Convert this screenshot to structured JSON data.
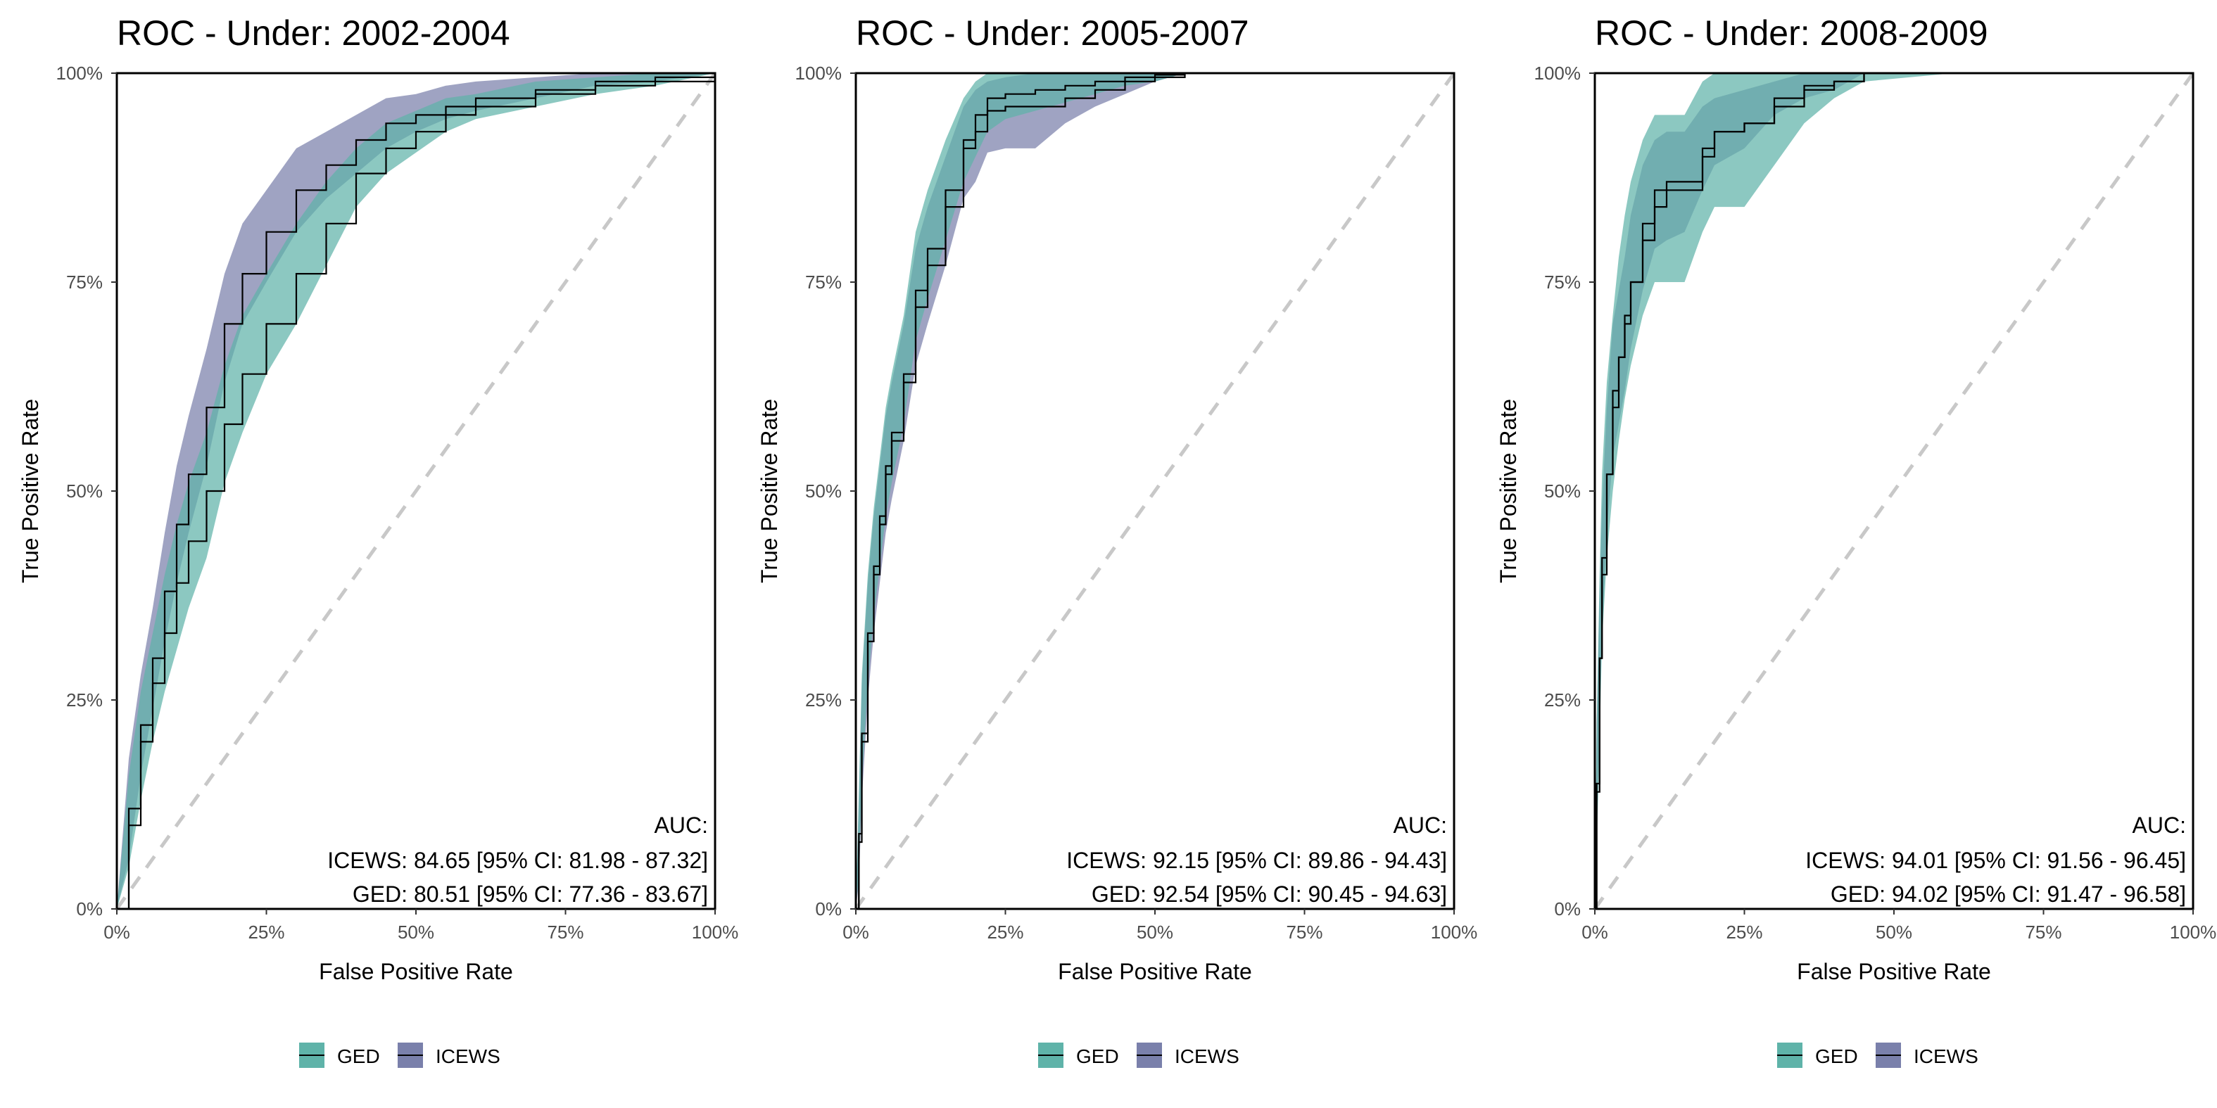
{
  "colors": {
    "GED_band": "#5fb3a9",
    "ICEWS_band": "#7a80ab",
    "overlap_band": "#5b7fa0",
    "line": "#000000",
    "diagonal": "#c8c8c8",
    "tick_text": "#4d4d4d"
  },
  "legend": {
    "items": [
      {
        "label": "GED",
        "color": "#5fb3a9"
      },
      {
        "label": "ICEWS",
        "color": "#7a80ab"
      }
    ]
  },
  "chart_data": [
    {
      "type": "line",
      "title": "ROC - Under: 2002-2004",
      "xlabel": "False Positive Rate",
      "ylabel": "True Positive Rate",
      "xlim": [
        0,
        1
      ],
      "ylim": [
        0,
        1
      ],
      "x_ticks": [
        "0%",
        "25%",
        "50%",
        "75%",
        "100%"
      ],
      "y_ticks": [
        "0%",
        "25%",
        "50%",
        "75%",
        "100%"
      ],
      "auc_heading": "AUC:",
      "auc_lines": [
        "ICEWS: 84.65 [95% CI: 81.98 - 87.32]",
        "GED: 80.51 [95% CI: 77.36 - 83.67]"
      ],
      "series": [
        {
          "name": "ICEWS",
          "x": [
            0,
            0.02,
            0.04,
            0.06,
            0.08,
            0.1,
            0.12,
            0.15,
            0.18,
            0.21,
            0.25,
            0.3,
            0.35,
            0.4,
            0.45,
            0.5,
            0.55,
            0.6,
            0.7,
            0.8,
            0.9,
            1.0
          ],
          "y": [
            0,
            0.12,
            0.22,
            0.3,
            0.38,
            0.46,
            0.52,
            0.6,
            0.7,
            0.76,
            0.81,
            0.86,
            0.89,
            0.92,
            0.94,
            0.95,
            0.96,
            0.97,
            0.98,
            0.99,
            0.995,
            1.0
          ],
          "lower": [
            0,
            0.06,
            0.16,
            0.24,
            0.32,
            0.39,
            0.45,
            0.53,
            0.63,
            0.7,
            0.75,
            0.81,
            0.85,
            0.88,
            0.91,
            0.93,
            0.945,
            0.955,
            0.97,
            0.985,
            0.99,
            1.0
          ],
          "upper": [
            0,
            0.18,
            0.28,
            0.36,
            0.45,
            0.53,
            0.59,
            0.67,
            0.76,
            0.82,
            0.86,
            0.91,
            0.93,
            0.95,
            0.97,
            0.975,
            0.985,
            0.99,
            0.995,
            1.0,
            1.0,
            1.0
          ]
        },
        {
          "name": "GED",
          "x": [
            0,
            0.02,
            0.04,
            0.06,
            0.08,
            0.1,
            0.12,
            0.15,
            0.18,
            0.21,
            0.25,
            0.3,
            0.35,
            0.4,
            0.45,
            0.5,
            0.55,
            0.6,
            0.7,
            0.8,
            0.9,
            1.0
          ],
          "y": [
            0,
            0.1,
            0.2,
            0.27,
            0.33,
            0.39,
            0.44,
            0.5,
            0.58,
            0.64,
            0.7,
            0.76,
            0.82,
            0.88,
            0.91,
            0.93,
            0.95,
            0.96,
            0.975,
            0.985,
            0.99,
            1.0
          ],
          "lower": [
            0,
            0.05,
            0.13,
            0.2,
            0.26,
            0.31,
            0.36,
            0.42,
            0.51,
            0.57,
            0.64,
            0.7,
            0.77,
            0.84,
            0.88,
            0.905,
            0.93,
            0.945,
            0.96,
            0.975,
            0.985,
            1.0
          ],
          "upper": [
            0,
            0.16,
            0.26,
            0.33,
            0.4,
            0.46,
            0.51,
            0.57,
            0.65,
            0.71,
            0.76,
            0.82,
            0.87,
            0.91,
            0.94,
            0.955,
            0.97,
            0.975,
            0.99,
            0.995,
            1.0,
            1.0
          ]
        }
      ]
    },
    {
      "type": "line",
      "title": "ROC - Under: 2005-2007",
      "xlabel": "False Positive Rate",
      "ylabel": "True Positive Rate",
      "xlim": [
        0,
        1
      ],
      "ylim": [
        0,
        1
      ],
      "x_ticks": [
        "0%",
        "25%",
        "50%",
        "75%",
        "100%"
      ],
      "y_ticks": [
        "0%",
        "25%",
        "50%",
        "75%",
        "100%"
      ],
      "auc_heading": "AUC:",
      "auc_lines": [
        "ICEWS: 92.15 [95% CI: 89.86 - 94.43]",
        "GED: 92.54 [95% CI: 90.45 - 94.63]"
      ],
      "series": [
        {
          "name": "ICEWS",
          "x": [
            0,
            0.005,
            0.01,
            0.02,
            0.03,
            0.04,
            0.05,
            0.06,
            0.08,
            0.1,
            0.12,
            0.15,
            0.18,
            0.2,
            0.22,
            0.25,
            0.3,
            0.35,
            0.4,
            0.45,
            0.5,
            0.55,
            0.6,
            0.8,
            1.0
          ],
          "y": [
            0,
            0.08,
            0.2,
            0.32,
            0.4,
            0.46,
            0.52,
            0.56,
            0.63,
            0.72,
            0.77,
            0.84,
            0.91,
            0.93,
            0.955,
            0.96,
            0.96,
            0.97,
            0.98,
            0.99,
            0.995,
            1.0,
            1.0,
            1.0,
            1.0
          ],
          "lower": [
            0,
            0.03,
            0.13,
            0.25,
            0.33,
            0.39,
            0.45,
            0.49,
            0.56,
            0.65,
            0.7,
            0.77,
            0.85,
            0.87,
            0.905,
            0.91,
            0.91,
            0.94,
            0.96,
            0.975,
            0.99,
            1.0,
            1.0,
            1.0,
            1.0
          ],
          "upper": [
            0,
            0.13,
            0.27,
            0.39,
            0.47,
            0.53,
            0.59,
            0.63,
            0.7,
            0.79,
            0.84,
            0.9,
            0.96,
            0.98,
            0.99,
            0.995,
            1.0,
            1.0,
            1.0,
            1.0,
            1.0,
            1.0,
            1.0,
            1.0,
            1.0
          ]
        },
        {
          "name": "GED",
          "x": [
            0,
            0.005,
            0.01,
            0.02,
            0.03,
            0.04,
            0.05,
            0.06,
            0.08,
            0.1,
            0.12,
            0.15,
            0.18,
            0.2,
            0.22,
            0.25,
            0.3,
            0.35,
            0.4,
            0.45,
            0.5,
            0.55,
            0.6,
            0.8,
            1.0
          ],
          "y": [
            0,
            0.09,
            0.21,
            0.33,
            0.41,
            0.47,
            0.53,
            0.57,
            0.64,
            0.74,
            0.79,
            0.86,
            0.92,
            0.95,
            0.97,
            0.975,
            0.98,
            0.985,
            0.99,
            0.995,
            0.998,
            1.0,
            1.0,
            1.0,
            1.0
          ],
          "lower": [
            0,
            0.04,
            0.15,
            0.27,
            0.35,
            0.41,
            0.47,
            0.51,
            0.58,
            0.68,
            0.73,
            0.8,
            0.87,
            0.9,
            0.93,
            0.945,
            0.955,
            0.965,
            0.975,
            0.985,
            0.99,
            1.0,
            1.0,
            1.0,
            1.0
          ],
          "upper": [
            0,
            0.14,
            0.28,
            0.4,
            0.48,
            0.54,
            0.6,
            0.64,
            0.71,
            0.81,
            0.86,
            0.92,
            0.97,
            0.99,
            1.0,
            1.0,
            1.0,
            1.0,
            1.0,
            1.0,
            1.0,
            1.0,
            1.0,
            1.0,
            1.0
          ]
        }
      ]
    },
    {
      "type": "line",
      "title": "ROC - Under: 2008-2009",
      "xlabel": "False Positive Rate",
      "ylabel": "True Positive Rate",
      "xlim": [
        0,
        1
      ],
      "ylim": [
        0,
        1
      ],
      "x_ticks": [
        "0%",
        "25%",
        "50%",
        "75%",
        "100%"
      ],
      "y_ticks": [
        "0%",
        "25%",
        "50%",
        "75%",
        "100%"
      ],
      "auc_heading": "AUC:",
      "auc_lines": [
        "ICEWS: 94.01 [95% CI: 91.56 - 96.45]",
        "GED: 94.02 [95% CI: 91.47 - 96.58]"
      ],
      "series": [
        {
          "name": "ICEWS",
          "x": [
            0,
            0.003,
            0.008,
            0.012,
            0.02,
            0.03,
            0.04,
            0.05,
            0.06,
            0.08,
            0.1,
            0.12,
            0.15,
            0.18,
            0.2,
            0.25,
            0.3,
            0.35,
            0.4,
            0.45,
            0.6,
            1.0
          ],
          "y": [
            0,
            0.15,
            0.3,
            0.4,
            0.52,
            0.62,
            0.66,
            0.7,
            0.75,
            0.82,
            0.86,
            0.87,
            0.87,
            0.91,
            0.93,
            0.94,
            0.97,
            0.985,
            0.99,
            1.0,
            1.0,
            1.0
          ],
          "lower": [
            0,
            0.08,
            0.22,
            0.33,
            0.45,
            0.54,
            0.58,
            0.62,
            0.67,
            0.74,
            0.79,
            0.8,
            0.81,
            0.86,
            0.89,
            0.91,
            0.95,
            0.97,
            0.98,
            1.0,
            1.0,
            1.0
          ],
          "upper": [
            0,
            0.22,
            0.38,
            0.48,
            0.6,
            0.7,
            0.74,
            0.78,
            0.83,
            0.89,
            0.92,
            0.93,
            0.93,
            0.96,
            0.97,
            0.98,
            0.99,
            1.0,
            1.0,
            1.0,
            1.0,
            1.0
          ]
        },
        {
          "name": "GED",
          "x": [
            0,
            0.003,
            0.008,
            0.012,
            0.02,
            0.03,
            0.04,
            0.05,
            0.06,
            0.08,
            0.1,
            0.12,
            0.15,
            0.18,
            0.2,
            0.25,
            0.3,
            0.35,
            0.4,
            0.45,
            0.6,
            1.0
          ],
          "y": [
            0,
            0.14,
            0.3,
            0.42,
            0.52,
            0.6,
            0.66,
            0.71,
            0.75,
            0.8,
            0.84,
            0.86,
            0.86,
            0.9,
            0.93,
            0.94,
            0.96,
            0.98,
            0.99,
            1.0,
            1.0,
            1.0
          ],
          "lower": [
            0,
            0.07,
            0.2,
            0.32,
            0.42,
            0.5,
            0.56,
            0.61,
            0.65,
            0.71,
            0.75,
            0.75,
            0.75,
            0.81,
            0.84,
            0.84,
            0.89,
            0.94,
            0.97,
            0.99,
            1.0,
            1.0
          ],
          "upper": [
            0,
            0.22,
            0.4,
            0.52,
            0.63,
            0.71,
            0.78,
            0.83,
            0.87,
            0.92,
            0.95,
            0.95,
            0.95,
            0.99,
            1.0,
            1.0,
            1.0,
            1.0,
            1.0,
            1.0,
            1.0,
            1.0
          ]
        }
      ]
    }
  ]
}
